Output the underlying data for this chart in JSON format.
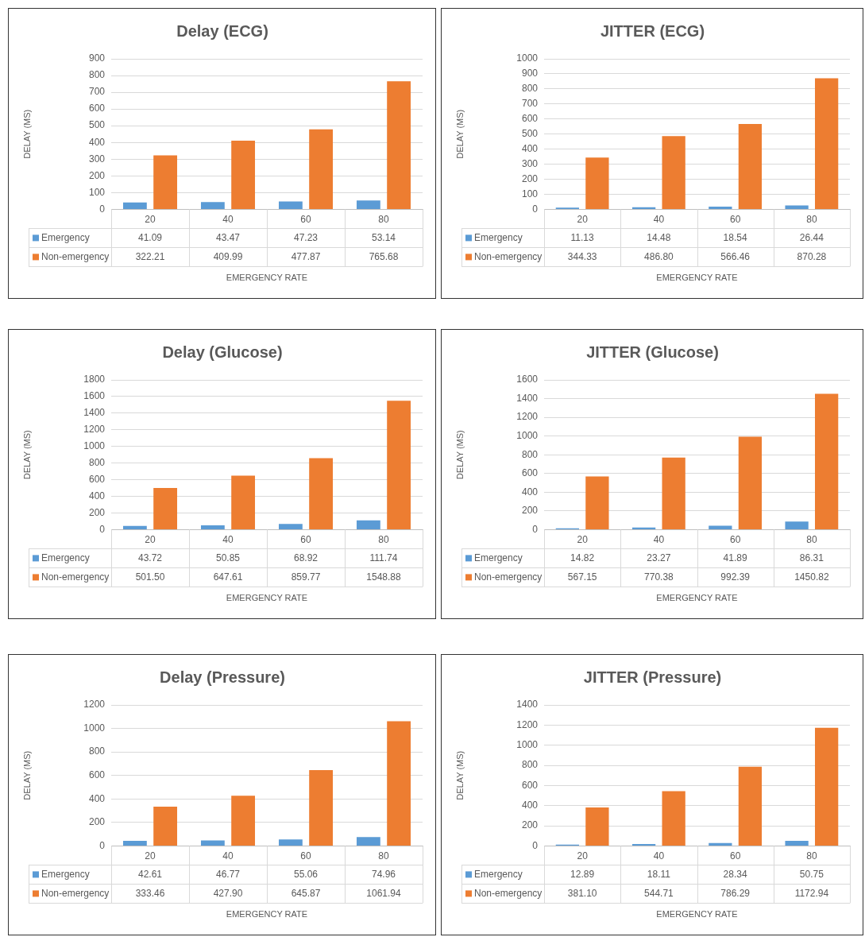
{
  "chart_data": [
    {
      "type": "bar",
      "title": "Delay (ECG)",
      "xlabel": "EMERGENCY RATE",
      "ylabel": "DELAY (MS)",
      "categories": [
        "20",
        "40",
        "60",
        "80"
      ],
      "series": [
        {
          "name": "Emergency",
          "color": "#5b9bd5",
          "values": [
            41.09,
            43.47,
            47.23,
            53.14
          ],
          "value_labels": [
            "41.09",
            "43.47",
            "47.23",
            "53.14"
          ]
        },
        {
          "name": "Non-emergency",
          "color": "#ed7d31",
          "values": [
            322.21,
            409.99,
            477.87,
            765.68
          ],
          "value_labels": [
            "322.21",
            "409.99",
            "477.87",
            "765.68"
          ]
        }
      ],
      "ylim": [
        0,
        900
      ],
      "yticks": [
        0,
        100,
        200,
        300,
        400,
        500,
        600,
        700,
        800,
        900
      ],
      "grid": "y",
      "legend": "bottom"
    },
    {
      "type": "bar",
      "title": "JITTER (ECG)",
      "xlabel": "EMERGENCY RATE",
      "ylabel": "DELAY (MS)",
      "categories": [
        "20",
        "40",
        "60",
        "80"
      ],
      "series": [
        {
          "name": "Emergency",
          "color": "#5b9bd5",
          "values": [
            11.13,
            14.48,
            18.54,
            26.44
          ],
          "value_labels": [
            "11.13",
            "14.48",
            "18.54",
            "26.44"
          ]
        },
        {
          "name": "Non-emergency",
          "color": "#ed7d31",
          "values": [
            344.33,
            486.8,
            566.46,
            870.28
          ],
          "value_labels": [
            "344.33",
            "486.80",
            "566.46",
            "870.28"
          ]
        }
      ],
      "ylim": [
        0,
        1000
      ],
      "yticks": [
        0,
        100,
        200,
        300,
        400,
        500,
        600,
        700,
        800,
        900,
        1000
      ],
      "grid": "y",
      "legend": "bottom"
    },
    {
      "type": "bar",
      "title": "Delay (Glucose)",
      "xlabel": "EMERGENCY RATE",
      "ylabel": "DELAY (MS)",
      "categories": [
        "20",
        "40",
        "60",
        "80"
      ],
      "series": [
        {
          "name": "Emergency",
          "color": "#5b9bd5",
          "values": [
            43.72,
            50.85,
            68.92,
            111.74
          ],
          "value_labels": [
            "43.72",
            "50.85",
            "68.92",
            "111.74"
          ]
        },
        {
          "name": "Non-emergency",
          "color": "#ed7d31",
          "values": [
            501.5,
            647.61,
            859.77,
            1548.88
          ],
          "value_labels": [
            "501.50",
            "647.61",
            "859.77",
            "1548.88"
          ]
        }
      ],
      "ylim": [
        0,
        1800
      ],
      "yticks": [
        0,
        200,
        400,
        600,
        800,
        1000,
        1200,
        1400,
        1600,
        1800
      ],
      "grid": "y",
      "legend": "bottom"
    },
    {
      "type": "bar",
      "title": "JITTER (Glucose)",
      "xlabel": "EMERGENCY RATE",
      "ylabel": "DELAY (MS)",
      "categories": [
        "20",
        "40",
        "60",
        "80"
      ],
      "series": [
        {
          "name": "Emergency",
          "color": "#5b9bd5",
          "values": [
            14.82,
            23.27,
            41.89,
            86.31
          ],
          "value_labels": [
            "14.82",
            "23.27",
            "41.89",
            "86.31"
          ]
        },
        {
          "name": "Non-emergency",
          "color": "#ed7d31",
          "values": [
            567.15,
            770.38,
            992.39,
            1450.82
          ],
          "value_labels": [
            "567.15",
            "770.38",
            "992.39",
            "1450.82"
          ]
        }
      ],
      "ylim": [
        0,
        1600
      ],
      "yticks": [
        0,
        200,
        400,
        600,
        800,
        1000,
        1200,
        1400,
        1600
      ],
      "grid": "y",
      "legend": "bottom"
    },
    {
      "type": "bar",
      "title": "Delay (Pressure)",
      "xlabel": "EMERGENCY RATE",
      "ylabel": "DELAY (MS)",
      "categories": [
        "20",
        "40",
        "60",
        "80"
      ],
      "series": [
        {
          "name": "Emergency",
          "color": "#5b9bd5",
          "values": [
            42.61,
            46.77,
            55.06,
            74.96
          ],
          "value_labels": [
            "42.61",
            "46.77",
            "55.06",
            "74.96"
          ]
        },
        {
          "name": "Non-emergency",
          "color": "#ed7d31",
          "values": [
            333.46,
            427.9,
            645.87,
            1061.94
          ],
          "value_labels": [
            "333.46",
            "427.90",
            "645.87",
            "1061.94"
          ]
        }
      ],
      "ylim": [
        0,
        1200
      ],
      "yticks": [
        0,
        200,
        400,
        600,
        800,
        1000,
        1200
      ],
      "grid": "y",
      "legend": "bottom"
    },
    {
      "type": "bar",
      "title": "JITTER (Pressure)",
      "xlabel": "EMERGENCY RATE",
      "ylabel": "DELAY (MS)",
      "categories": [
        "20",
        "40",
        "60",
        "80"
      ],
      "series": [
        {
          "name": "Emergency",
          "color": "#5b9bd5",
          "values": [
            12.89,
            18.11,
            28.34,
            50.75
          ],
          "value_labels": [
            "12.89",
            "18.11",
            "28.34",
            "50.75"
          ]
        },
        {
          "name": "Non-emergency",
          "color": "#ed7d31",
          "values": [
            381.1,
            544.71,
            786.29,
            1172.94
          ],
          "value_labels": [
            "381.10",
            "544.71",
            "786.29",
            "1172.94"
          ]
        }
      ],
      "ylim": [
        0,
        1400
      ],
      "yticks": [
        0,
        200,
        400,
        600,
        800,
        1000,
        1200,
        1400
      ],
      "grid": "y",
      "legend": "bottom"
    }
  ]
}
